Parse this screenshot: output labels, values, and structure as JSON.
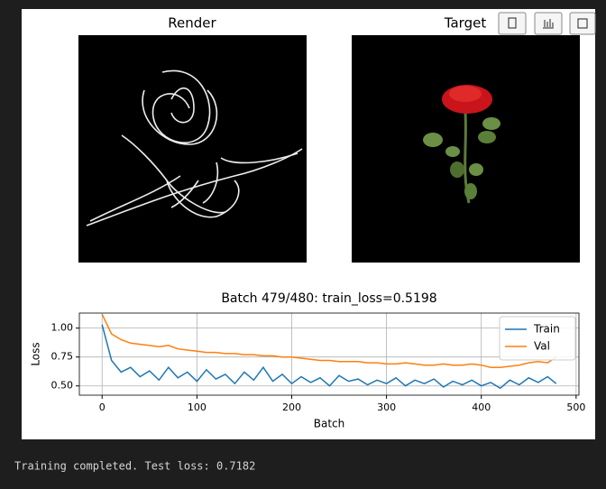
{
  "images": {
    "render_title": "Render",
    "target_title": "Target"
  },
  "chart_data": {
    "type": "line",
    "title": "Batch 479/480: train_loss=0.5198",
    "x_label": "Batch",
    "y_label": "Loss",
    "x": [
      0,
      10,
      20,
      30,
      40,
      50,
      60,
      70,
      80,
      90,
      100,
      110,
      120,
      130,
      140,
      150,
      160,
      170,
      180,
      190,
      200,
      210,
      220,
      230,
      240,
      250,
      260,
      270,
      280,
      290,
      300,
      310,
      320,
      330,
      340,
      350,
      360,
      370,
      380,
      390,
      400,
      410,
      420,
      430,
      440,
      450,
      460,
      470,
      479
    ],
    "series": [
      {
        "name": "Train",
        "color": "#1f77b4",
        "values": [
          1.03,
          0.72,
          0.62,
          0.66,
          0.58,
          0.63,
          0.55,
          0.66,
          0.57,
          0.62,
          0.54,
          0.64,
          0.56,
          0.6,
          0.52,
          0.62,
          0.55,
          0.66,
          0.54,
          0.6,
          0.52,
          0.58,
          0.53,
          0.57,
          0.5,
          0.59,
          0.54,
          0.56,
          0.51,
          0.55,
          0.52,
          0.57,
          0.5,
          0.55,
          0.52,
          0.56,
          0.49,
          0.54,
          0.51,
          0.55,
          0.5,
          0.53,
          0.48,
          0.55,
          0.51,
          0.57,
          0.53,
          0.58,
          0.52
        ]
      },
      {
        "name": "Val",
        "color": "#ff7f0e",
        "values": [
          1.12,
          0.95,
          0.9,
          0.87,
          0.86,
          0.85,
          0.84,
          0.85,
          0.82,
          0.81,
          0.8,
          0.79,
          0.79,
          0.78,
          0.78,
          0.77,
          0.77,
          0.76,
          0.76,
          0.75,
          0.75,
          0.74,
          0.73,
          0.72,
          0.72,
          0.71,
          0.71,
          0.71,
          0.7,
          0.7,
          0.69,
          0.69,
          0.7,
          0.69,
          0.68,
          0.68,
          0.69,
          0.68,
          0.68,
          0.69,
          0.68,
          0.66,
          0.66,
          0.67,
          0.68,
          0.7,
          0.71,
          0.7,
          0.75
        ]
      }
    ],
    "xlim": [
      -24,
      503
    ],
    "ylim": [
      0.42,
      1.13
    ],
    "xticks": [
      0,
      100,
      200,
      300,
      400,
      500
    ],
    "yticks": [
      {
        "value": 0.5,
        "label": "0.50"
      },
      {
        "value": 0.75,
        "label": "0.75"
      },
      {
        "value": 1.0,
        "label": "1.00"
      }
    ],
    "grid": true,
    "legend": "upper-right"
  },
  "console_output": "Training completed. Test loss: 0.7182"
}
